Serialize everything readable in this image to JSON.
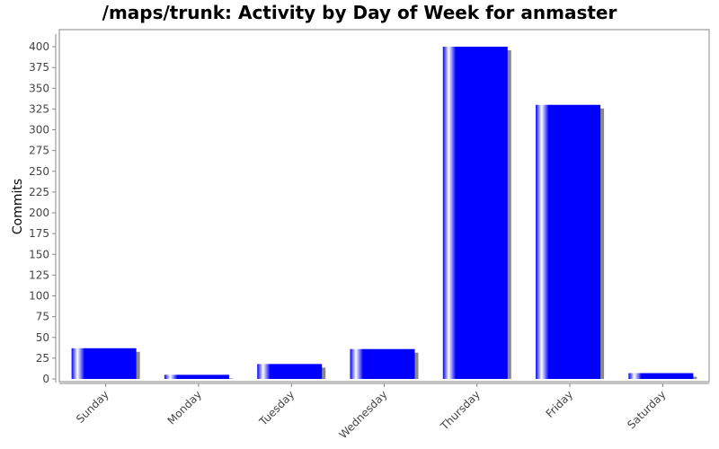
{
  "chart_data": {
    "type": "bar",
    "title": "/maps/trunk: Activity by Day of Week for anmaster",
    "xlabel": "",
    "ylabel": "Commits",
    "categories": [
      "Sunday",
      "Monday",
      "Tuesday",
      "Wednesday",
      "Thursday",
      "Friday",
      "Saturday"
    ],
    "values": [
      37,
      5,
      18,
      36,
      400,
      330,
      7
    ],
    "ylim": [
      0,
      420
    ],
    "yticks": [
      0,
      25,
      50,
      75,
      100,
      125,
      150,
      175,
      200,
      225,
      250,
      275,
      300,
      325,
      350,
      375,
      400
    ],
    "grid": false,
    "legend": "none",
    "colors": {
      "bar": "#0000ff",
      "highlight": "#ffffff",
      "shadow": "#888888"
    }
  }
}
